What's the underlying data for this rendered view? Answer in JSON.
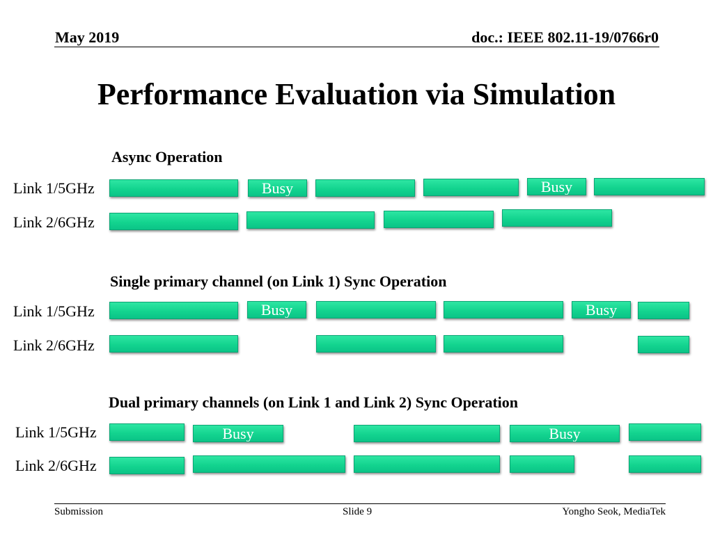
{
  "header": {
    "date": "May 2019",
    "doc": "doc.: IEEE 802.11-19/0766r0"
  },
  "title": "Performance Evaluation via Simulation",
  "sections": [
    {
      "heading": "Async Operation",
      "link1_label": "Link 1/5GHz",
      "link2_label": "Link 2/6GHz"
    },
    {
      "heading": "Single primary channel (on Link 1) Sync Operation",
      "link1_label": "Link 1/5GHz",
      "link2_label": "Link 2/6GHz"
    },
    {
      "heading": "Dual primary channels (on Link 1 and Link 2)  Sync Operation",
      "link1_label": "Link 1/5GHz",
      "link2_label": "Link 2/6GHz"
    }
  ],
  "busy_label": "Busy",
  "colors": {
    "bar": "#13d48f",
    "bar_border": "#0aa574"
  },
  "footer": {
    "left": "Submission",
    "center": "Slide 9",
    "right": "Yongho Seok, MediaTek"
  }
}
